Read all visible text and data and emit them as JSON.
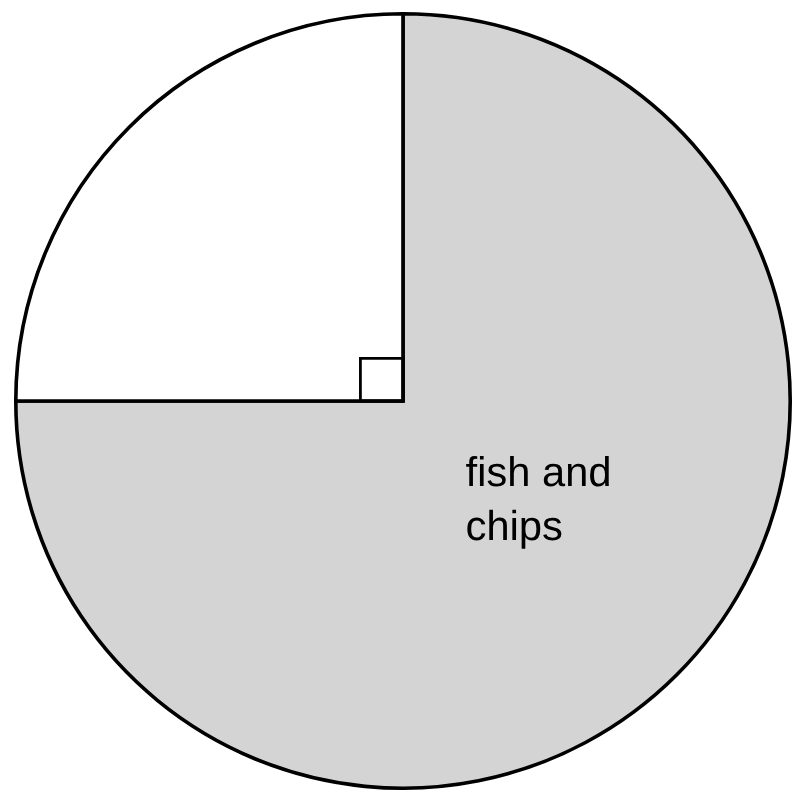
{
  "chart_data": {
    "type": "pie",
    "categories": [
      "fish and chips",
      null
    ],
    "values": [
      75,
      25
    ],
    "colors": [
      "#d4d4d4",
      "#ffffff"
    ]
  }
}
